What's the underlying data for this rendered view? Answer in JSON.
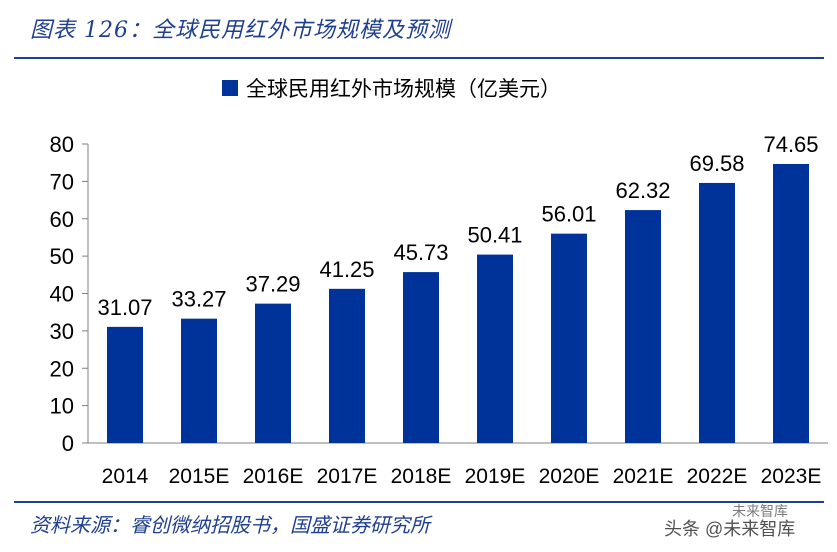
{
  "figure": {
    "title": "图表 126：全球民用红外市场规模及预测",
    "source": "资料来源：睿创微纳招股书，国盛证券研究所"
  },
  "watermark": {
    "text": "头条 @未来智库",
    "overlay": "未来智库"
  },
  "colors": {
    "bar": "#003399",
    "title": "#1f3f8f"
  },
  "chart_data": {
    "type": "bar",
    "title": "",
    "xlabel": "",
    "ylabel": "",
    "categories": [
      "2014",
      "2015E",
      "2016E",
      "2017E",
      "2018E",
      "2019E",
      "2020E",
      "2021E",
      "2022E",
      "2023E"
    ],
    "series": [
      {
        "name": "全球民用红外市场规模（亿美元）",
        "values": [
          31.07,
          33.27,
          37.29,
          41.25,
          45.73,
          50.41,
          56.01,
          62.32,
          69.58,
          74.65
        ],
        "labels": [
          "31.07",
          "33.27",
          "37.29",
          "41.25",
          "45.73",
          "50.41",
          "56.01",
          "62.32",
          "69.58",
          "74.65"
        ]
      }
    ],
    "ylim": [
      0,
      80
    ],
    "yticks": [
      "0",
      "10",
      "20",
      "30",
      "40",
      "50",
      "60",
      "70",
      "80"
    ],
    "grid": false,
    "legend": "top-center"
  }
}
